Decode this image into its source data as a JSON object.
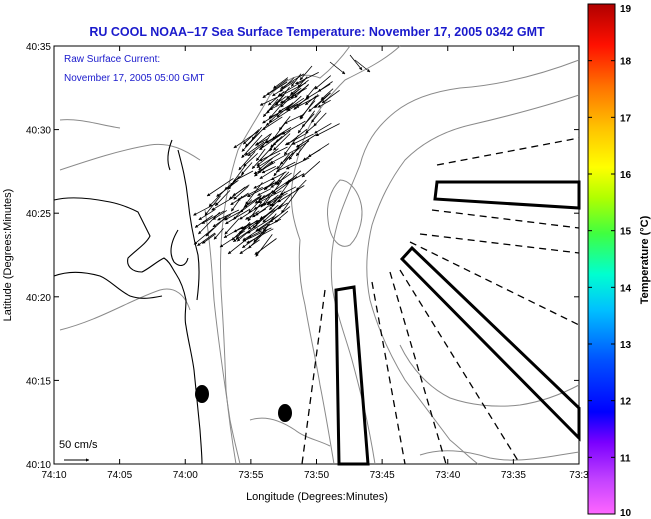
{
  "chart_data": {
    "type": "map",
    "title": "RU COOL  NOAA–17  Sea Surface Temperature:  November 17, 2005 0342 GMT",
    "xlabel": "Longitude (Degrees:Minutes)",
    "ylabel": "Latitude (Degrees:Minutes)",
    "x_ticks": [
      "74:10",
      "74:05",
      "74:00",
      "73:55",
      "73:50",
      "73:45",
      "73:40",
      "73:35",
      "73:3"
    ],
    "y_ticks": [
      "40:35",
      "40:30",
      "40:25",
      "40:20",
      "40:15",
      "40:10"
    ],
    "xlim_minutes_west": [
      10,
      30
    ],
    "ylim_minutes_north": [
      10,
      35
    ],
    "annotation_line1": "Raw Surface Current:",
    "annotation_line2": "November 17, 2005 05:00 GMT",
    "scale_label": "50 cm/s",
    "colorbar": {
      "label": "Temperature (°C)",
      "min": 10,
      "max": 19,
      "ticks": [
        "19",
        "18",
        "17",
        "16",
        "15",
        "14",
        "13",
        "12",
        "11",
        "10"
      ]
    },
    "colors": {
      "title": "#1a1acc",
      "coast": "#000000",
      "bathymetry": "#888888",
      "vectors": "#000000"
    }
  }
}
